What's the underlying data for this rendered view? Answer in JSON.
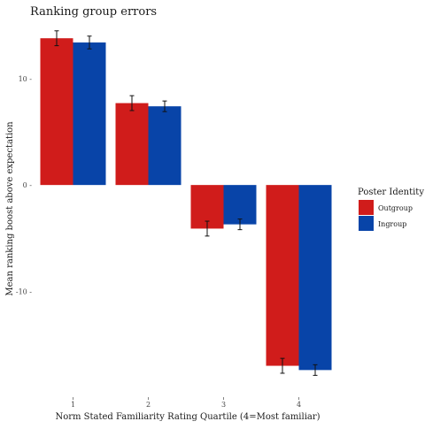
{
  "chart_data": {
    "type": "bar",
    "title": "Ranking group errors",
    "xlabel": "Norm Stated Familiarity Rating Quartile (4=Most familiar)",
    "ylabel": "Mean ranking boost above expectation",
    "categories": [
      "1",
      "2",
      "3",
      "4"
    ],
    "series": [
      {
        "name": "Outgroup",
        "color": "#d01c1b",
        "values": [
          13.8,
          7.7,
          -4.1,
          -17.0
        ],
        "err": [
          0.7,
          0.7,
          0.7,
          0.7
        ]
      },
      {
        "name": "Ingroup",
        "color": "#0844a8",
        "values": [
          13.4,
          7.4,
          -3.7,
          -17.4
        ],
        "err": [
          0.6,
          0.5,
          0.5,
          0.5
        ]
      }
    ],
    "ylim": [
      -19.2,
      14.9
    ],
    "yticks": [
      10,
      0,
      -10
    ],
    "ytick_labels": [
      "10 -",
      "0 -",
      "-10 -"
    ],
    "grid": false,
    "legend": {
      "title": "Poster Identity",
      "placement": "right"
    }
  }
}
